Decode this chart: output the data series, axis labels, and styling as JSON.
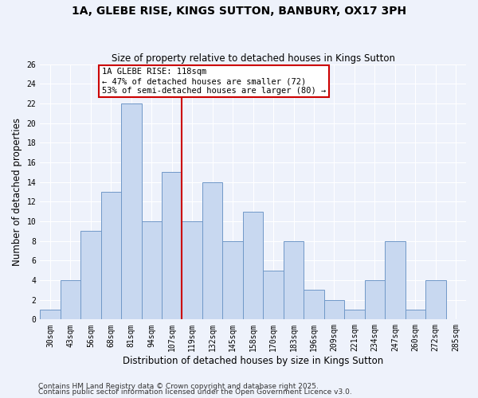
{
  "title": "1A, GLEBE RISE, KINGS SUTTON, BANBURY, OX17 3PH",
  "subtitle": "Size of property relative to detached houses in Kings Sutton",
  "xlabel": "Distribution of detached houses by size in Kings Sutton",
  "ylabel": "Number of detached properties",
  "bin_labels": [
    "30sqm",
    "43sqm",
    "56sqm",
    "68sqm",
    "81sqm",
    "94sqm",
    "107sqm",
    "119sqm",
    "132sqm",
    "145sqm",
    "158sqm",
    "170sqm",
    "183sqm",
    "196sqm",
    "209sqm",
    "221sqm",
    "234sqm",
    "247sqm",
    "260sqm",
    "272sqm",
    "285sqm"
  ],
  "bar_values": [
    1,
    4,
    9,
    13,
    22,
    10,
    15,
    10,
    14,
    8,
    11,
    5,
    8,
    3,
    2,
    1,
    4,
    8,
    1,
    4,
    0
  ],
  "bar_color": "#c8d8f0",
  "bar_edge_color": "#7098c8",
  "marker_label": "1A GLEBE RISE: 118sqm",
  "annotation_line1": "← 47% of detached houses are smaller (72)",
  "annotation_line2": "53% of semi-detached houses are larger (80) →",
  "annotation_box_color": "#ffffff",
  "annotation_box_edge": "#cc0000",
  "vline_color": "#cc0000",
  "vline_x_index": 7,
  "ylim": [
    0,
    26
  ],
  "yticks": [
    0,
    2,
    4,
    6,
    8,
    10,
    12,
    14,
    16,
    18,
    20,
    22,
    24,
    26
  ],
  "footer1": "Contains HM Land Registry data © Crown copyright and database right 2025.",
  "footer2": "Contains public sector information licensed under the Open Government Licence v3.0.",
  "bg_color": "#eef2fb",
  "grid_color": "#ffffff",
  "title_fontsize": 10,
  "subtitle_fontsize": 8.5,
  "axis_label_fontsize": 8.5,
  "tick_fontsize": 7,
  "annotation_fontsize": 7.5,
  "footer_fontsize": 6.5
}
